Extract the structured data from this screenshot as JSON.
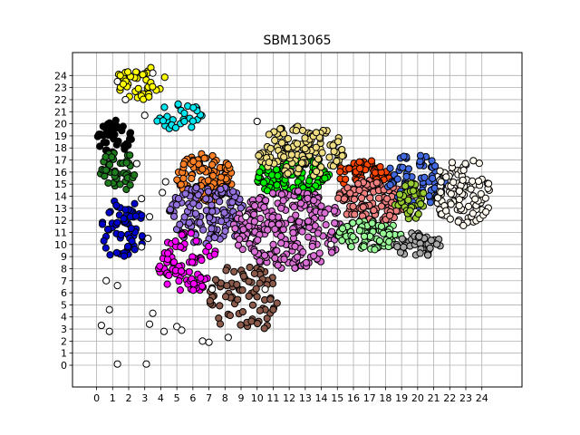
{
  "chart_data": {
    "type": "scatter",
    "title": "SBM13065",
    "xlabel": "",
    "ylabel": "",
    "xlim": [
      -1.5,
      26.5
    ],
    "ylim": [
      -1.8,
      25.9
    ],
    "x_ticks": [
      "0",
      "1",
      "2",
      "3",
      "4",
      "5",
      "6",
      "7",
      "8",
      "9",
      "10",
      "11",
      "12",
      "13",
      "14",
      "15",
      "16",
      "17",
      "18",
      "19",
      "20",
      "21",
      "22",
      "23",
      "24"
    ],
    "y_ticks": [
      "0",
      "1",
      "2",
      "3",
      "4",
      "5",
      "6",
      "7",
      "8",
      "9",
      "10",
      "11",
      "12",
      "13",
      "14",
      "15",
      "16",
      "17",
      "18",
      "19",
      "20",
      "21",
      "22",
      "23",
      "24"
    ],
    "grid": true,
    "marker_edge_color": "#000000",
    "approximate": true,
    "clusters": [
      {
        "color": "#ffff00",
        "x_range": [
          1.2,
          4.4
        ],
        "y_range": [
          22.0,
          24.9
        ],
        "count": 40
      },
      {
        "color": "#00e5ee",
        "x_range": [
          3.5,
          6.8
        ],
        "y_range": [
          19.5,
          21.8
        ],
        "count": 30
      },
      {
        "color": "#000000",
        "x_range": [
          0.0,
          2.2
        ],
        "y_range": [
          17.5,
          20.3
        ],
        "count": 45
      },
      {
        "color": "#1e7b1e",
        "x_range": [
          0.2,
          2.4
        ],
        "y_range": [
          14.3,
          18.0
        ],
        "count": 45
      },
      {
        "color": "#0000cd",
        "x_range": [
          0.3,
          3.0
        ],
        "y_range": [
          8.5,
          14.0
        ],
        "count": 60
      },
      {
        "color": "#ff7f24",
        "x_range": [
          5.0,
          8.5
        ],
        "y_range": [
          13.5,
          17.6
        ],
        "count": 120
      },
      {
        "color": "#9370db",
        "x_range": [
          4.5,
          9.5
        ],
        "y_range": [
          10.0,
          15.0
        ],
        "count": 140
      },
      {
        "color": "#ff00ff",
        "x_range": [
          3.8,
          7.6
        ],
        "y_range": [
          6.0,
          11.0
        ],
        "count": 80
      },
      {
        "color": "#8b5a4a",
        "x_range": [
          7.0,
          11.3
        ],
        "y_range": [
          2.2,
          9.0
        ],
        "count": 80
      },
      {
        "color": "#00ee00",
        "x_range": [
          10.0,
          14.5
        ],
        "y_range": [
          13.8,
          17.3
        ],
        "count": 120
      },
      {
        "color": "#eedd82",
        "x_range": [
          10.0,
          15.5
        ],
        "y_range": [
          15.6,
          20.0
        ],
        "count": 140
      },
      {
        "color": "#da70d6",
        "x_range": [
          8.5,
          15.5
        ],
        "y_range": [
          8.0,
          14.5
        ],
        "count": 260
      },
      {
        "color": "#ff4500",
        "x_range": [
          15.0,
          18.3
        ],
        "y_range": [
          14.5,
          17.0
        ],
        "count": 70
      },
      {
        "color": "#f08080",
        "x_range": [
          15.0,
          19.5
        ],
        "y_range": [
          11.8,
          15.5
        ],
        "count": 130
      },
      {
        "color": "#98fb98",
        "x_range": [
          15.0,
          19.0
        ],
        "y_range": [
          9.5,
          12.0
        ],
        "count": 90
      },
      {
        "color": "#4169e1",
        "x_range": [
          18.0,
          21.7
        ],
        "y_range": [
          13.0,
          17.5
        ],
        "count": 70
      },
      {
        "color": "#9acd32",
        "x_range": [
          18.5,
          20.5
        ],
        "y_range": [
          12.0,
          15.5
        ],
        "count": 40
      },
      {
        "color": "#a9a9a9",
        "x_range": [
          18.5,
          21.5
        ],
        "y_range": [
          9.0,
          11.0
        ],
        "count": 50
      },
      {
        "color": "#fffaf0",
        "x_range": [
          21.0,
          24.7
        ],
        "y_range": [
          11.5,
          17.2
        ],
        "count": 110
      }
    ],
    "outlier_points": [
      {
        "x": 1.3,
        "y": 0.1,
        "color": "#ffffff"
      },
      {
        "x": 3.1,
        "y": 0.1,
        "color": "#ffffff"
      },
      {
        "x": 0.3,
        "y": 3.3,
        "color": "#ffffff"
      },
      {
        "x": 0.8,
        "y": 2.8,
        "color": "#ffffff"
      },
      {
        "x": 0.8,
        "y": 4.6,
        "color": "#ffffff"
      },
      {
        "x": 1.3,
        "y": 6.6,
        "color": "#ffffff"
      },
      {
        "x": 0.6,
        "y": 7.0,
        "color": "#ffffff"
      },
      {
        "x": 3.5,
        "y": 4.3,
        "color": "#ffffff"
      },
      {
        "x": 3.3,
        "y": 3.4,
        "color": "#ffffff"
      },
      {
        "x": 4.2,
        "y": 2.8,
        "color": "#ffffff"
      },
      {
        "x": 5.0,
        "y": 3.2,
        "color": "#ffffff"
      },
      {
        "x": 5.3,
        "y": 2.9,
        "color": "#ffffff"
      },
      {
        "x": 6.6,
        "y": 2.0,
        "color": "#ffffff"
      },
      {
        "x": 7.0,
        "y": 1.9,
        "color": "#ffffff"
      },
      {
        "x": 8.2,
        "y": 2.3,
        "color": "#ffffff"
      },
      {
        "x": 7.2,
        "y": 6.3,
        "color": "#ffffff"
      },
      {
        "x": 10.5,
        "y": 6.3,
        "color": "#ffffff"
      },
      {
        "x": 3.2,
        "y": 10.5,
        "color": "#ffffff"
      },
      {
        "x": 2.8,
        "y": 9.8,
        "color": "#ffffff"
      },
      {
        "x": 3.3,
        "y": 12.3,
        "color": "#ffffff"
      },
      {
        "x": 2.8,
        "y": 13.8,
        "color": "#ffffff"
      },
      {
        "x": 4.1,
        "y": 14.3,
        "color": "#ffffff"
      },
      {
        "x": 4.3,
        "y": 15.2,
        "color": "#ffffff"
      },
      {
        "x": 9.3,
        "y": 12.3,
        "color": "#ffffff"
      },
      {
        "x": 1.3,
        "y": 23.5,
        "color": "#ffffff"
      },
      {
        "x": 1.8,
        "y": 22.0,
        "color": "#ffffff"
      },
      {
        "x": 3.0,
        "y": 20.7,
        "color": "#ffffff"
      },
      {
        "x": 3.5,
        "y": 24.2,
        "color": "#ffffff"
      },
      {
        "x": 2.5,
        "y": 16.7,
        "color": "#ffffff"
      },
      {
        "x": 10.0,
        "y": 20.2,
        "color": "#ffffff"
      },
      {
        "x": 14.6,
        "y": 10.0,
        "color": "#ffffff"
      }
    ]
  }
}
